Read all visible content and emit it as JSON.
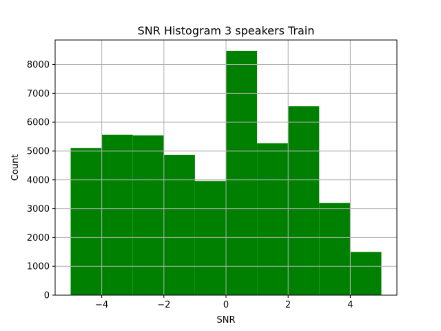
{
  "chart_data": {
    "type": "bar",
    "title": "SNR Histogram 3 speakers Train",
    "xlabel": "SNR",
    "ylabel": "Count",
    "xlim": [
      -5.5,
      5.5
    ],
    "ylim": [
      0,
      8850
    ],
    "grid": true,
    "bar_color": "#008000",
    "bins": [
      {
        "x0": -5,
        "x1": -4,
        "value": 5100
      },
      {
        "x0": -4,
        "x1": -3,
        "value": 5560
      },
      {
        "x0": -3,
        "x1": -2,
        "value": 5540
      },
      {
        "x0": -2,
        "x1": -1,
        "value": 4860
      },
      {
        "x0": -1,
        "x1": 0,
        "value": 3960
      },
      {
        "x0": 0,
        "x1": 1,
        "value": 8470
      },
      {
        "x0": 1,
        "x1": 2,
        "value": 5270
      },
      {
        "x0": 2,
        "x1": 3,
        "value": 6550
      },
      {
        "x0": 3,
        "x1": 4,
        "value": 3200
      },
      {
        "x0": 4,
        "x1": 5,
        "value": 1500
      }
    ],
    "x_ticks": [
      {
        "value": -4,
        "label": "−4"
      },
      {
        "value": -2,
        "label": "−2"
      },
      {
        "value": 0,
        "label": "0"
      },
      {
        "value": 2,
        "label": "2"
      },
      {
        "value": 4,
        "label": "4"
      }
    ],
    "y_ticks": [
      {
        "value": 0,
        "label": "0"
      },
      {
        "value": 1000,
        "label": "1000"
      },
      {
        "value": 2000,
        "label": "2000"
      },
      {
        "value": 3000,
        "label": "3000"
      },
      {
        "value": 4000,
        "label": "4000"
      },
      {
        "value": 5000,
        "label": "5000"
      },
      {
        "value": 6000,
        "label": "6000"
      },
      {
        "value": 7000,
        "label": "7000"
      },
      {
        "value": 8000,
        "label": "8000"
      }
    ]
  }
}
